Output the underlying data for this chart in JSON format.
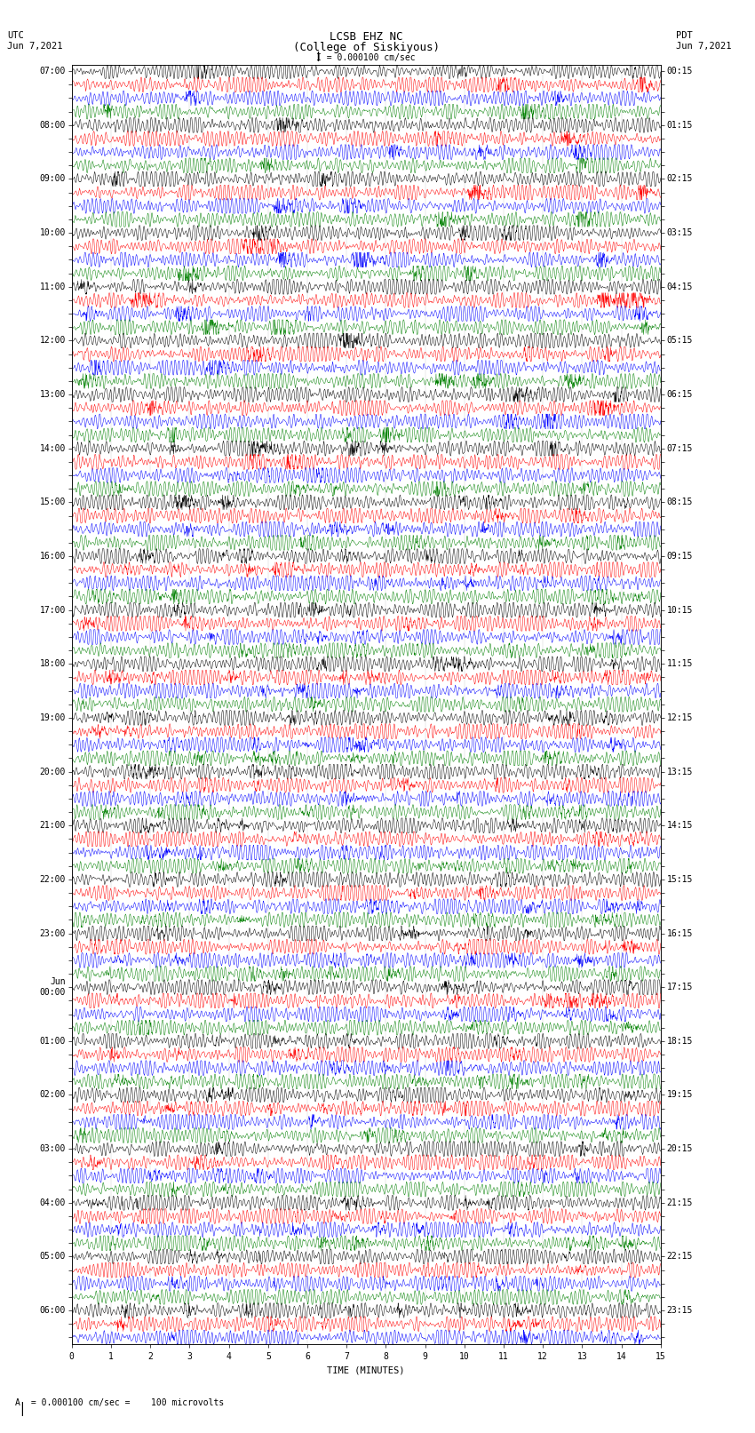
{
  "title_line1": "LCSB EHZ NC",
  "title_line2": "(College of Siskiyous)",
  "scale_label": "I = 0.000100 cm/sec",
  "left_label_top": "UTC",
  "left_label_date": "Jun 7,2021",
  "right_label_top": "PDT",
  "right_label_date": "Jun 7,2021",
  "xlabel": "TIME (MINUTES)",
  "bottom_note": " = 0.000100 cm/sec =    100 microvolts",
  "utc_labels": [
    "07:00",
    "",
    "",
    "",
    "08:00",
    "",
    "",
    "",
    "09:00",
    "",
    "",
    "",
    "10:00",
    "",
    "",
    "",
    "11:00",
    "",
    "",
    "",
    "12:00",
    "",
    "",
    "",
    "13:00",
    "",
    "",
    "",
    "14:00",
    "",
    "",
    "",
    "15:00",
    "",
    "",
    "",
    "16:00",
    "",
    "",
    "",
    "17:00",
    "",
    "",
    "",
    "18:00",
    "",
    "",
    "",
    "19:00",
    "",
    "",
    "",
    "20:00",
    "",
    "",
    "",
    "21:00",
    "",
    "",
    "",
    "22:00",
    "",
    "",
    "",
    "23:00",
    "",
    "",
    "",
    "00:00",
    "",
    "",
    "",
    "01:00",
    "",
    "",
    "",
    "02:00",
    "",
    "",
    "",
    "03:00",
    "",
    "",
    "",
    "04:00",
    "",
    "",
    "",
    "05:00",
    "",
    "",
    "",
    "06:00",
    "",
    ""
  ],
  "pdt_labels": [
    "00:15",
    "",
    "",
    "",
    "01:15",
    "",
    "",
    "",
    "02:15",
    "",
    "",
    "",
    "03:15",
    "",
    "",
    "",
    "04:15",
    "",
    "",
    "",
    "05:15",
    "",
    "",
    "",
    "06:15",
    "",
    "",
    "",
    "07:15",
    "",
    "",
    "",
    "08:15",
    "",
    "",
    "",
    "09:15",
    "",
    "",
    "",
    "10:15",
    "",
    "",
    "",
    "11:15",
    "",
    "",
    "",
    "12:15",
    "",
    "",
    "",
    "13:15",
    "",
    "",
    "",
    "14:15",
    "",
    "",
    "",
    "15:15",
    "",
    "",
    "",
    "16:15",
    "",
    "",
    "",
    "17:15",
    "",
    "",
    "",
    "18:15",
    "",
    "",
    "",
    "19:15",
    "",
    "",
    "",
    "20:15",
    "",
    "",
    "",
    "21:15",
    "",
    "",
    "",
    "22:15",
    "",
    "",
    "",
    "23:15",
    "",
    ""
  ],
  "num_traces": 95,
  "trace_colors_pattern": [
    "black",
    "red",
    "blue",
    "green"
  ],
  "minutes": 15,
  "samples_per_trace": 1800,
  "fig_width": 8.5,
  "fig_height": 16.13,
  "dpi": 100,
  "bg_color": "white",
  "trace_linewidth": 0.35,
  "font_size_title": 9,
  "font_size_labels": 7.5,
  "font_size_axis": 7,
  "x_ticks": [
    0,
    1,
    2,
    3,
    4,
    5,
    6,
    7,
    8,
    9,
    10,
    11,
    12,
    13,
    14,
    15
  ]
}
